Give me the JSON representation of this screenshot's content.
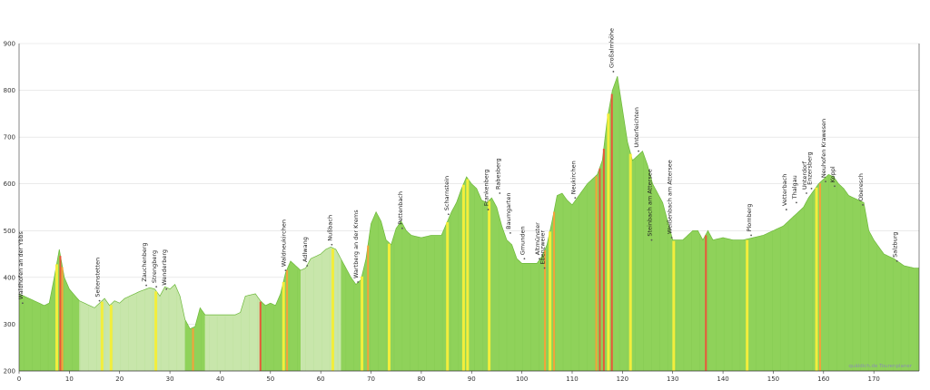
{
  "chart_data": {
    "type": "area",
    "title": "",
    "xlabel": "",
    "ylabel": "",
    "xlim": [
      0,
      179
    ],
    "ylim": [
      200,
      900
    ],
    "x_ticks": [
      0,
      10,
      20,
      30,
      40,
      50,
      60,
      70,
      80,
      90,
      100,
      110,
      120,
      130,
      140,
      150,
      160,
      170
    ],
    "y_ticks": [
      200,
      300,
      400,
      500,
      600,
      700,
      800,
      900
    ],
    "grid": "horizontal",
    "colors": {
      "area": "#8fd25a",
      "area_light": "#c8e6ab",
      "area_edge": "#6cb83a",
      "climb_yellow": "#f2ee3c",
      "climb_orange": "#f5a23a",
      "climb_red": "#e8573a",
      "grid": "#dddddd",
      "axis": "#333333"
    },
    "profile": {
      "x": [
        0,
        1,
        2,
        3,
        4,
        5,
        6,
        7,
        8,
        9,
        10,
        12,
        14,
        15,
        16,
        17,
        18,
        19,
        20,
        21,
        22,
        24,
        26,
        27,
        28,
        29,
        30,
        31,
        32,
        33,
        34,
        35,
        36,
        37,
        40,
        43,
        44,
        45,
        47,
        48,
        49,
        50,
        51,
        52,
        53,
        54,
        55,
        56,
        57,
        58,
        59,
        60,
        61,
        62,
        63,
        64,
        65,
        66,
        67,
        68,
        69,
        70,
        71,
        72,
        73,
        74,
        75,
        76,
        77,
        78,
        80,
        82,
        84,
        86,
        87,
        88,
        89,
        90,
        91,
        92,
        93,
        94,
        95,
        96,
        97,
        98,
        99,
        100,
        101,
        102,
        103,
        104,
        105,
        106,
        107,
        108,
        109,
        110,
        111,
        112,
        113,
        114,
        115,
        116,
        117,
        118,
        119,
        120,
        121,
        122,
        123,
        124,
        125,
        126,
        128,
        130,
        131,
        132,
        133,
        134,
        135,
        136,
        137,
        138,
        140,
        142,
        144,
        146,
        148,
        150,
        152,
        154,
        156,
        157,
        158,
        159,
        160,
        161,
        162,
        163,
        164,
        165,
        166,
        167,
        168,
        169,
        170,
        172,
        174,
        176,
        178,
        179
      ],
      "y": [
        365,
        360,
        355,
        350,
        345,
        340,
        345,
        400,
        460,
        400,
        375,
        350,
        340,
        335,
        345,
        355,
        340,
        350,
        345,
        355,
        360,
        370,
        378,
        375,
        360,
        380,
        375,
        385,
        360,
        310,
        290,
        295,
        335,
        320,
        320,
        320,
        325,
        360,
        365,
        350,
        340,
        345,
        340,
        365,
        410,
        435,
        425,
        415,
        420,
        440,
        445,
        450,
        460,
        465,
        460,
        440,
        420,
        400,
        385,
        395,
        440,
        515,
        540,
        520,
        480,
        470,
        505,
        520,
        500,
        490,
        485,
        490,
        490,
        540,
        560,
        590,
        615,
        600,
        590,
        565,
        560,
        570,
        550,
        510,
        480,
        470,
        440,
        430,
        430,
        430,
        430,
        445,
        470,
        520,
        575,
        580,
        565,
        555,
        570,
        585,
        600,
        610,
        620,
        650,
        740,
        800,
        830,
        760,
        690,
        650,
        660,
        670,
        640,
        600,
        560,
        480,
        480,
        480,
        490,
        500,
        500,
        480,
        500,
        480,
        485,
        480,
        480,
        485,
        490,
        500,
        510,
        530,
        550,
        570,
        585,
        600,
        610,
        620,
        615,
        600,
        590,
        575,
        570,
        565,
        560,
        500,
        480,
        450,
        440,
        425,
        420,
        420
      ]
    },
    "light_ranges": [
      [
        12,
        33
      ],
      [
        37,
        48
      ],
      [
        56,
        64
      ]
    ],
    "climb_segments": [
      {
        "x": 7.5,
        "level": "yellow"
      },
      {
        "x": 8.2,
        "level": "red"
      },
      {
        "x": 8.6,
        "level": "orange"
      },
      {
        "x": 16.5,
        "level": "yellow"
      },
      {
        "x": 18.3,
        "level": "yellow"
      },
      {
        "x": 27.2,
        "level": "yellow"
      },
      {
        "x": 34.6,
        "level": "orange"
      },
      {
        "x": 48,
        "level": "red"
      },
      {
        "x": 52.6,
        "level": "yellow"
      },
      {
        "x": 53.3,
        "level": "orange"
      },
      {
        "x": 62.4,
        "level": "yellow"
      },
      {
        "x": 68.2,
        "level": "yellow"
      },
      {
        "x": 69.4,
        "level": "orange"
      },
      {
        "x": 73.6,
        "level": "yellow"
      },
      {
        "x": 85.2,
        "level": "yellow"
      },
      {
        "x": 88.4,
        "level": "yellow"
      },
      {
        "x": 89.2,
        "level": "yellow"
      },
      {
        "x": 93.5,
        "level": "yellow"
      },
      {
        "x": 104.6,
        "level": "orange"
      },
      {
        "x": 105.6,
        "level": "yellow"
      },
      {
        "x": 106.4,
        "level": "orange"
      },
      {
        "x": 114.8,
        "level": "orange"
      },
      {
        "x": 115.5,
        "level": "red"
      },
      {
        "x": 116.3,
        "level": "red"
      },
      {
        "x": 117.2,
        "level": "yellow"
      },
      {
        "x": 117.9,
        "level": "red"
      },
      {
        "x": 121.6,
        "level": "yellow"
      },
      {
        "x": 130.2,
        "level": "yellow"
      },
      {
        "x": 136.6,
        "level": "red"
      },
      {
        "x": 144.8,
        "level": "yellow"
      },
      {
        "x": 158.6,
        "level": "yellow"
      },
      {
        "x": 159.3,
        "level": "orange"
      }
    ],
    "places": [
      {
        "name": "Waldhofen an der Ybbs",
        "x": 0.7,
        "y": 345
      },
      {
        "name": "Seitenstetten",
        "x": 16,
        "y": 350
      },
      {
        "name": "Zauchenberg",
        "x": 25.3,
        "y": 383
      },
      {
        "name": "Strengberg",
        "x": 27.3,
        "y": 380
      },
      {
        "name": "Wenderberg",
        "x": 29.3,
        "y": 375
      },
      {
        "name": "Waldneukirchen",
        "x": 53,
        "y": 415
      },
      {
        "name": "Adlwang",
        "x": 57.3,
        "y": 425
      },
      {
        "name": "Nußbach",
        "x": 62.2,
        "y": 470
      },
      {
        "name": "Wartberg an der Krems",
        "x": 67.4,
        "y": 390
      },
      {
        "name": "Pettenbach",
        "x": 76.2,
        "y": 505
      },
      {
        "name": "Scharnstein",
        "x": 85.4,
        "y": 535
      },
      {
        "name": "Frankenberg",
        "x": 93.3,
        "y": 545
      },
      {
        "name": "Rabesberg",
        "x": 95.6,
        "y": 580
      },
      {
        "name": "Baumgarten",
        "x": 97.7,
        "y": 495
      },
      {
        "name": "Gmunden",
        "x": 100.5,
        "y": 440
      },
      {
        "name": "Altmünster",
        "x": 103.5,
        "y": 440
      },
      {
        "name": "Ebenzweier",
        "x": 104.5,
        "y": 420
      },
      {
        "name": "Neukirchen",
        "x": 110.6,
        "y": 570
      },
      {
        "name": "Großalmhöhe",
        "x": 118.2,
        "y": 840
      },
      {
        "name": "Unterfeichten",
        "x": 123.2,
        "y": 670
      },
      {
        "name": "Steinbach am Attersee",
        "x": 125.8,
        "y": 480
      },
      {
        "name": "Weißenbach am Attersee",
        "x": 129.8,
        "y": 485
      },
      {
        "name": "Plomberg",
        "x": 145.6,
        "y": 490
      },
      {
        "name": "Vetterbach",
        "x": 152.6,
        "y": 545
      },
      {
        "name": "Thalgau",
        "x": 154.6,
        "y": 560
      },
      {
        "name": "Unterdorf",
        "x": 156.6,
        "y": 580
      },
      {
        "name": "Enzersberg",
        "x": 157.6,
        "y": 590
      },
      {
        "name": "Neuhofen Krawesen",
        "x": 160.4,
        "y": 605
      },
      {
        "name": "Koppl",
        "x": 162.2,
        "y": 595
      },
      {
        "name": "Oberesch",
        "x": 167.8,
        "y": 555
      },
      {
        "name": "Salzburg",
        "x": 174.6,
        "y": 435
      }
    ],
    "credit": "quäldich.de Tourenplaner"
  }
}
